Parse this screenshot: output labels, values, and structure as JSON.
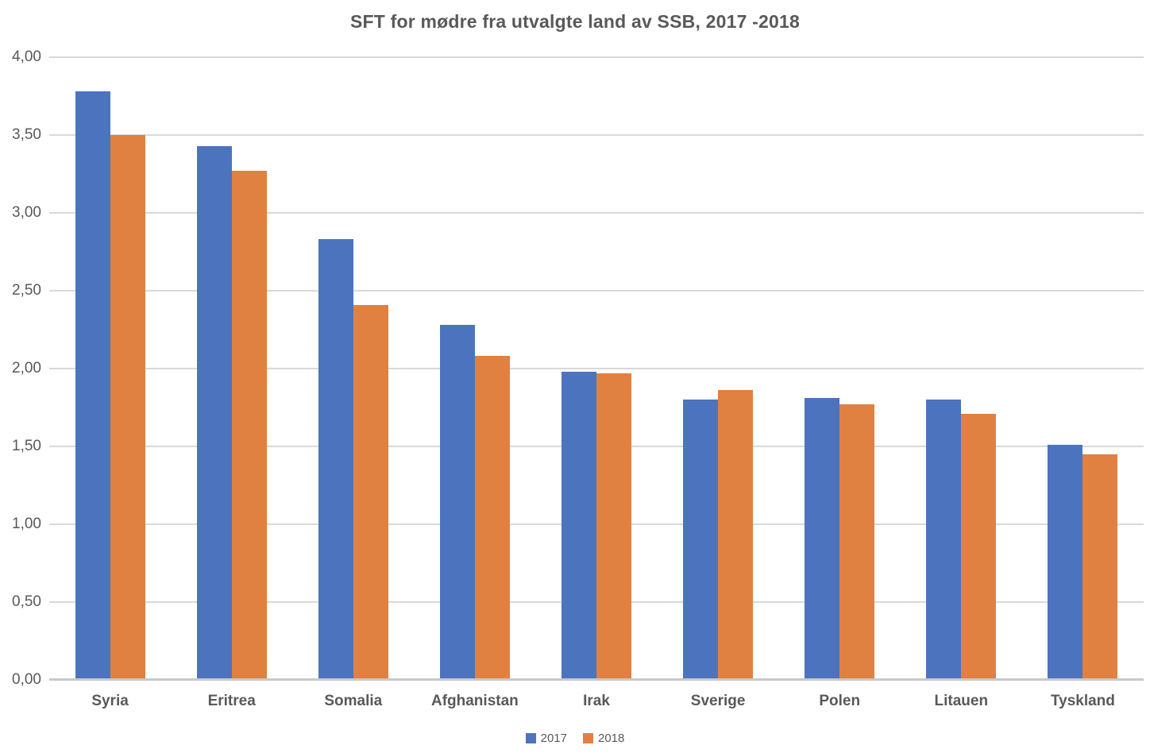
{
  "chart_data": {
    "type": "bar",
    "title": "SFT for mødre fra utvalgte land av SSB, 2017 -2018",
    "categories": [
      "Syria",
      "Eritrea",
      "Somalia",
      "Afghanistan",
      "Irak",
      "Sverige",
      "Polen",
      "Litauen",
      "Tyskland"
    ],
    "series": [
      {
        "name": "2017",
        "color": "#4c74be",
        "values": [
          3.78,
          3.43,
          2.83,
          2.28,
          1.98,
          1.8,
          1.81,
          1.8,
          1.51
        ]
      },
      {
        "name": "2018",
        "color": "#e08142",
        "values": [
          3.5,
          3.27,
          2.41,
          2.08,
          1.97,
          1.86,
          1.77,
          1.71,
          1.45
        ]
      }
    ],
    "xlabel": "",
    "ylabel": "",
    "ylim": [
      0,
      4
    ],
    "y_tick_step": 0.5,
    "y_tick_labels": [
      "0,00",
      "0,50",
      "1,00",
      "1,50",
      "2,00",
      "2,50",
      "3,00",
      "3,50",
      "4,00"
    ],
    "grid": true,
    "legend_position": "bottom"
  },
  "colors": {
    "series_2017": "#4c74be",
    "series_2018": "#e08142",
    "gridline": "#d9d9d9",
    "axis_line": "#c9c9c9",
    "text": "#595959",
    "background": "#ffffff"
  }
}
